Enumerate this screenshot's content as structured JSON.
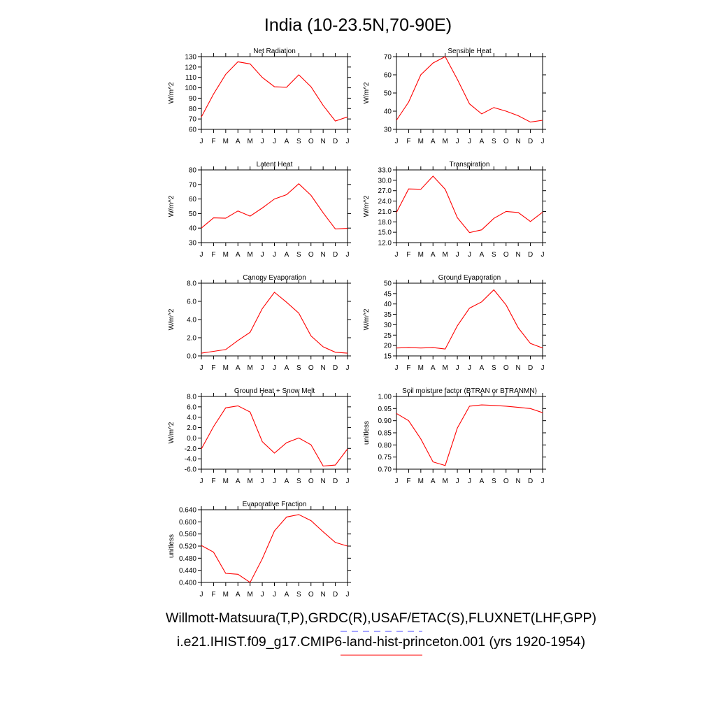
{
  "page_title": "India (10-23.5N,70-90E)",
  "legend": [
    {
      "label": "Willmott-Matsuura(T,P),GRDC(R),USAF/ETAC(S),FLUXNET(LHF,GPP)",
      "color": "#4a4aff",
      "style": "dashed"
    },
    {
      "label": "i.e21.IHIST.f09_g17.CMIP6-land-hist-princeton.001 (yrs 1920-1954)",
      "color": "#ff0000",
      "style": "solid"
    }
  ],
  "colors": {
    "model_line": "#ff0000",
    "obs_line": "#4a4aff",
    "axis": "#000000"
  },
  "chart_data": [
    {
      "type": "line",
      "title": "Net Radiation",
      "ylabel": "W/m^2",
      "categories": [
        "J",
        "F",
        "M",
        "A",
        "M",
        "J",
        "J",
        "A",
        "S",
        "O",
        "N",
        "D",
        "J"
      ],
      "ylim": [
        60,
        130
      ],
      "yticks": [
        60,
        70,
        80,
        90,
        100,
        110,
        120,
        130
      ],
      "ytick_labels": [
        "60",
        "70",
        "80",
        "90",
        "100",
        "110",
        "120",
        "130"
      ],
      "series": [
        {
          "values": [
            72,
            94,
            113,
            125,
            123,
            110,
            101,
            100.5,
            112.5,
            101,
            83,
            68,
            72
          ]
        }
      ]
    },
    {
      "type": "line",
      "title": "Sensible Heat",
      "ylabel": "W/m^2",
      "categories": [
        "J",
        "F",
        "M",
        "A",
        "M",
        "J",
        "J",
        "A",
        "S",
        "O",
        "N",
        "D",
        "J"
      ],
      "ylim": [
        30,
        70
      ],
      "yticks": [
        30,
        40,
        50,
        60,
        70
      ],
      "ytick_labels": [
        "30",
        "40",
        "50",
        "60",
        "70"
      ],
      "series": [
        {
          "values": [
            35,
            45,
            60,
            66.5,
            70,
            57.5,
            44,
            38.5,
            42,
            40,
            37.5,
            34,
            35
          ]
        }
      ]
    },
    {
      "type": "line",
      "title": "Latent Heat",
      "ylabel": "W/m^2",
      "categories": [
        "J",
        "F",
        "M",
        "A",
        "M",
        "J",
        "J",
        "A",
        "S",
        "O",
        "N",
        "D",
        "J"
      ],
      "ylim": [
        30,
        80
      ],
      "yticks": [
        30,
        40,
        50,
        60,
        70,
        80
      ],
      "ytick_labels": [
        "30",
        "40",
        "50",
        "60",
        "70",
        "80"
      ],
      "series": [
        {
          "values": [
            40,
            47,
            46.8,
            51.8,
            48.2,
            53.8,
            60,
            63,
            70.5,
            62.5,
            50.5,
            39.4,
            39.8
          ]
        }
      ]
    },
    {
      "type": "line",
      "title": "Transpiration",
      "ylabel": "W/m^2",
      "categories": [
        "J",
        "F",
        "M",
        "A",
        "M",
        "J",
        "J",
        "A",
        "S",
        "O",
        "N",
        "D",
        "J"
      ],
      "ylim": [
        12,
        33
      ],
      "yticks": [
        12,
        15,
        18,
        21,
        24,
        27,
        30,
        33
      ],
      "ytick_labels": [
        "12.0",
        "15.0",
        "18.0",
        "21.0",
        "24.0",
        "27.0",
        "30.0",
        "33.0"
      ],
      "series": [
        {
          "values": [
            20.7,
            27.5,
            27.4,
            31.2,
            27.4,
            19.2,
            14.9,
            15.7,
            19,
            21,
            20.7,
            18.1,
            20.8
          ]
        }
      ]
    },
    {
      "type": "line",
      "title": "Canopy Evaporation",
      "ylabel": "W/m^2",
      "categories": [
        "J",
        "F",
        "M",
        "A",
        "M",
        "J",
        "J",
        "A",
        "S",
        "O",
        "N",
        "D",
        "J"
      ],
      "ylim": [
        0,
        8
      ],
      "yticks": [
        0,
        2,
        4,
        6,
        8
      ],
      "ytick_labels": [
        "0.0",
        "2.0",
        "4.0",
        "6.0",
        "8.0"
      ],
      "series": [
        {
          "values": [
            0.3,
            0.5,
            0.7,
            1.7,
            2.6,
            5.2,
            7.0,
            5.9,
            4.7,
            2.2,
            1.0,
            0.4,
            0.3
          ]
        }
      ]
    },
    {
      "type": "line",
      "title": "Ground Evaporation",
      "ylabel": "W/m^2",
      "categories": [
        "J",
        "F",
        "M",
        "A",
        "M",
        "J",
        "J",
        "A",
        "S",
        "O",
        "N",
        "D",
        "J"
      ],
      "ylim": [
        15,
        50
      ],
      "yticks": [
        15,
        20,
        25,
        30,
        35,
        40,
        45,
        50
      ],
      "ytick_labels": [
        "15",
        "20",
        "25",
        "30",
        "35",
        "40",
        "45",
        "50"
      ],
      "series": [
        {
          "values": [
            18.8,
            19,
            18.8,
            19,
            18.3,
            29.5,
            38,
            41,
            46.8,
            39.5,
            28.5,
            21,
            18.8
          ]
        }
      ]
    },
    {
      "type": "line",
      "title": "Ground Heat + Snow Melt",
      "ylabel": "W/m^2",
      "categories": [
        "J",
        "F",
        "M",
        "A",
        "M",
        "J",
        "J",
        "A",
        "S",
        "O",
        "N",
        "D",
        "J"
      ],
      "ylim": [
        -6,
        8
      ],
      "yticks": [
        -6,
        -4,
        -2,
        0,
        2,
        4,
        6,
        8
      ],
      "ytick_labels": [
        "-6.0",
        "-4.0",
        "-2.0",
        "0.0",
        "2.0",
        "4.0",
        "6.0",
        "8.0"
      ],
      "series": [
        {
          "values": [
            -2.1,
            2.2,
            5.8,
            6.2,
            5.0,
            -0.7,
            -2.9,
            -0.9,
            0.0,
            -1.3,
            -5.4,
            -5.2,
            -2.1
          ]
        }
      ]
    },
    {
      "type": "line",
      "title": "Soil moisture factor (BTRAN or BTRANMN)",
      "ylabel": "unitless",
      "categories": [
        "J",
        "F",
        "M",
        "A",
        "M",
        "J",
        "J",
        "A",
        "S",
        "O",
        "N",
        "D",
        "J"
      ],
      "ylim": [
        0.7,
        1.0
      ],
      "yticks": [
        0.7,
        0.75,
        0.8,
        0.85,
        0.9,
        0.95,
        1.0
      ],
      "ytick_labels": [
        "0.70",
        "0.75",
        "0.80",
        "0.85",
        "0.90",
        "0.95",
        "1.00"
      ],
      "series": [
        {
          "values": [
            0.93,
            0.9,
            0.825,
            0.73,
            0.715,
            0.87,
            0.96,
            0.965,
            0.963,
            0.96,
            0.955,
            0.95,
            0.933
          ]
        }
      ]
    },
    {
      "type": "line",
      "title": "Evaporative Fraction",
      "ylabel": "unitless",
      "categories": [
        "J",
        "F",
        "M",
        "A",
        "M",
        "J",
        "J",
        "A",
        "S",
        "O",
        "N",
        "D",
        "J"
      ],
      "ylim": [
        0.4,
        0.64
      ],
      "yticks": [
        0.4,
        0.44,
        0.48,
        0.52,
        0.56,
        0.6,
        0.64
      ],
      "ytick_labels": [
        "0.400",
        "0.440",
        "0.480",
        "0.520",
        "0.560",
        "0.600",
        "0.640"
      ],
      "series": [
        {
          "values": [
            0.522,
            0.5,
            0.43,
            0.427,
            0.4,
            0.478,
            0.57,
            0.616,
            0.624,
            0.604,
            0.567,
            0.532,
            0.52
          ]
        }
      ]
    }
  ]
}
